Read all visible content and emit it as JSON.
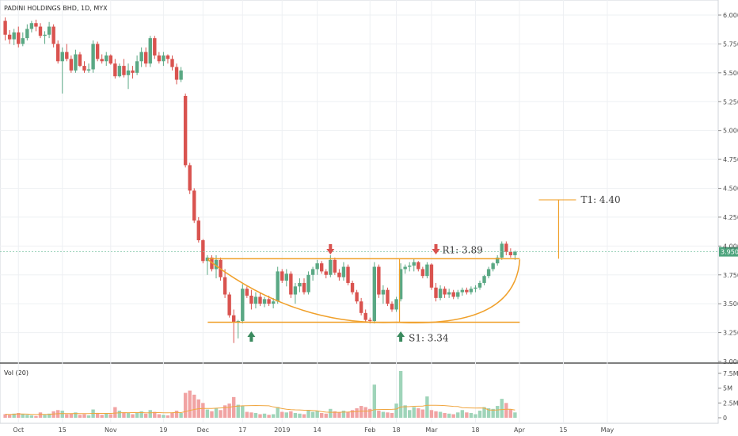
{
  "chart_data": {
    "type": "candlestick",
    "title": "PADINI HOLDINGS BHD, 1D, MYX",
    "volume_label": "Vol (20)",
    "price_axis": {
      "min": 3.0,
      "max": 6.0,
      "ticks": [
        "6.000",
        "5.750",
        "5.500",
        "5.250",
        "5.000",
        "4.750",
        "4.500",
        "4.250",
        "4.000",
        "3.750",
        "3.500",
        "3.250",
        "3.000"
      ]
    },
    "volume_axis": {
      "ticks": [
        "7.5M",
        "5M",
        "2.5M",
        "0"
      ]
    },
    "date_ticks": [
      {
        "i": 3,
        "label": "Oct"
      },
      {
        "i": 13,
        "label": "15"
      },
      {
        "i": 24,
        "label": "Nov"
      },
      {
        "i": 36,
        "label": "19"
      },
      {
        "i": 45,
        "label": "Dec"
      },
      {
        "i": 54,
        "label": "17"
      },
      {
        "i": 63,
        "label": "2019"
      },
      {
        "i": 71,
        "label": "14"
      },
      {
        "i": 83,
        "label": "Feb"
      },
      {
        "i": 89,
        "label": "18"
      },
      {
        "i": 97,
        "label": "Mar"
      },
      {
        "i": 107,
        "label": "18"
      },
      {
        "i": 117,
        "label": "Apr"
      },
      {
        "i": 127,
        "label": "15"
      },
      {
        "i": 137,
        "label": "May"
      }
    ],
    "last_price": "3.950",
    "candles": [
      [
        5.95,
        5.98,
        5.78,
        5.83,
        0.6
      ],
      [
        5.83,
        5.87,
        5.75,
        5.79,
        0.5
      ],
      [
        5.79,
        5.88,
        5.74,
        5.85,
        0.7
      ],
      [
        5.85,
        5.9,
        5.72,
        5.75,
        0.8
      ],
      [
        5.75,
        5.85,
        5.73,
        5.8,
        0.6
      ],
      [
        5.8,
        5.92,
        5.78,
        5.88,
        0.5
      ],
      [
        5.88,
        5.95,
        5.85,
        5.93,
        0.4
      ],
      [
        5.93,
        5.96,
        5.86,
        5.9,
        0.3
      ],
      [
        5.9,
        5.93,
        5.8,
        5.82,
        0.9
      ],
      [
        5.82,
        5.86,
        5.75,
        5.83,
        0.5
      ],
      [
        5.83,
        5.94,
        5.8,
        5.9,
        0.7
      ],
      [
        5.9,
        5.92,
        5.72,
        5.75,
        1.1
      ],
      [
        5.75,
        5.78,
        5.58,
        5.6,
        1.3
      ],
      [
        5.6,
        5.72,
        5.32,
        5.68,
        1.2
      ],
      [
        5.68,
        5.75,
        5.6,
        5.62,
        0.6
      ],
      [
        5.62,
        5.65,
        5.5,
        5.52,
        0.7
      ],
      [
        5.52,
        5.7,
        5.5,
        5.66,
        0.9
      ],
      [
        5.66,
        5.68,
        5.55,
        5.56,
        0.5
      ],
      [
        5.56,
        5.6,
        5.5,
        5.52,
        0.6
      ],
      [
        5.52,
        5.58,
        5.5,
        5.53,
        0.4
      ],
      [
        5.53,
        5.78,
        5.5,
        5.75,
        1.4
      ],
      [
        5.75,
        5.77,
        5.6,
        5.62,
        0.8
      ],
      [
        5.62,
        5.66,
        5.58,
        5.6,
        0.5
      ],
      [
        5.6,
        5.68,
        5.56,
        5.65,
        0.7
      ],
      [
        5.65,
        5.66,
        5.57,
        5.58,
        0.6
      ],
      [
        5.58,
        5.62,
        5.45,
        5.47,
        1.8
      ],
      [
        5.47,
        5.58,
        5.46,
        5.56,
        1.2
      ],
      [
        5.56,
        5.62,
        5.46,
        5.48,
        0.9
      ],
      [
        5.48,
        5.58,
        5.36,
        5.52,
        0.8
      ],
      [
        5.52,
        5.56,
        5.45,
        5.5,
        0.6
      ],
      [
        5.5,
        5.65,
        5.48,
        5.6,
        0.9
      ],
      [
        5.6,
        5.72,
        5.55,
        5.68,
        1.1
      ],
      [
        5.68,
        5.72,
        5.55,
        5.58,
        0.7
      ],
      [
        5.58,
        5.82,
        5.55,
        5.8,
        1.3
      ],
      [
        5.8,
        5.82,
        5.62,
        5.65,
        1.0
      ],
      [
        5.65,
        5.68,
        5.58,
        5.6,
        0.6
      ],
      [
        5.6,
        5.68,
        5.56,
        5.65,
        0.5
      ],
      [
        5.65,
        5.66,
        5.58,
        5.62,
        0.4
      ],
      [
        5.62,
        5.65,
        5.52,
        5.55,
        0.9
      ],
      [
        5.55,
        5.58,
        5.4,
        5.44,
        1.2
      ],
      [
        5.44,
        5.55,
        5.42,
        5.52,
        0.8
      ],
      [
        5.3,
        5.32,
        4.68,
        4.7,
        4.2
      ],
      [
        4.7,
        4.72,
        4.45,
        4.48,
        4.6
      ],
      [
        4.48,
        4.5,
        4.2,
        4.22,
        3.9
      ],
      [
        4.22,
        4.25,
        4.03,
        4.05,
        3.1
      ],
      [
        4.05,
        4.06,
        3.85,
        3.87,
        2.5
      ],
      [
        3.87,
        3.92,
        3.75,
        3.9,
        1.4
      ],
      [
        3.9,
        3.92,
        3.78,
        3.8,
        1.1
      ],
      [
        3.8,
        3.92,
        3.72,
        3.88,
        1.6
      ],
      [
        3.88,
        3.9,
        3.7,
        3.73,
        1.3
      ],
      [
        3.73,
        3.8,
        3.55,
        3.58,
        2.1
      ],
      [
        3.58,
        3.6,
        3.38,
        3.4,
        2.4
      ],
      [
        3.4,
        3.45,
        3.16,
        3.34,
        3.5
      ],
      [
        3.34,
        3.36,
        3.2,
        3.35,
        2.2
      ],
      [
        3.35,
        3.67,
        3.33,
        3.63,
        2.0
      ],
      [
        3.63,
        3.65,
        3.55,
        3.57,
        1.0
      ],
      [
        3.57,
        3.62,
        3.45,
        3.5,
        0.9
      ],
      [
        3.5,
        3.6,
        3.46,
        3.56,
        0.8
      ],
      [
        3.56,
        3.6,
        3.48,
        3.5,
        0.6
      ],
      [
        3.5,
        3.56,
        3.47,
        3.54,
        0.7
      ],
      [
        3.54,
        3.57,
        3.48,
        3.5,
        0.5
      ],
      [
        3.5,
        3.55,
        3.46,
        3.52,
        0.6
      ],
      [
        3.52,
        3.82,
        3.5,
        3.78,
        1.8
      ],
      [
        3.78,
        3.8,
        3.68,
        3.7,
        1.0
      ],
      [
        3.7,
        3.8,
        3.65,
        3.76,
        0.9
      ],
      [
        3.76,
        3.78,
        3.55,
        3.58,
        1.1
      ],
      [
        3.58,
        3.68,
        3.5,
        3.65,
        0.8
      ],
      [
        3.65,
        3.72,
        3.6,
        3.68,
        0.7
      ],
      [
        3.68,
        3.72,
        3.58,
        3.6,
        0.6
      ],
      [
        3.6,
        3.78,
        3.58,
        3.75,
        1.3
      ],
      [
        3.75,
        3.82,
        3.7,
        3.8,
        1.0
      ],
      [
        3.8,
        3.88,
        3.75,
        3.85,
        1.2
      ],
      [
        3.85,
        3.87,
        3.76,
        3.78,
        0.8
      ],
      [
        3.78,
        3.8,
        3.72,
        3.75,
        0.7
      ],
      [
        3.75,
        3.92,
        3.73,
        3.88,
        1.5
      ],
      [
        3.88,
        3.9,
        3.75,
        3.77,
        1.1
      ],
      [
        3.77,
        3.8,
        3.7,
        3.73,
        0.9
      ],
      [
        3.73,
        3.86,
        3.7,
        3.82,
        1.2
      ],
      [
        3.82,
        3.84,
        3.66,
        3.68,
        1.0
      ],
      [
        3.68,
        3.7,
        3.58,
        3.6,
        1.3
      ],
      [
        3.6,
        3.62,
        3.5,
        3.52,
        1.6
      ],
      [
        3.52,
        3.55,
        3.4,
        3.42,
        2.0
      ],
      [
        3.42,
        3.45,
        3.34,
        3.36,
        1.8
      ],
      [
        3.36,
        3.38,
        3.33,
        3.35,
        1.5
      ],
      [
        3.35,
        3.86,
        3.33,
        3.82,
        5.6
      ],
      [
        3.82,
        3.84,
        3.55,
        3.58,
        1.2
      ],
      [
        3.58,
        3.66,
        3.5,
        3.62,
        1.0
      ],
      [
        3.62,
        3.64,
        3.48,
        3.5,
        0.9
      ],
      [
        3.5,
        3.52,
        3.43,
        3.45,
        0.8
      ],
      [
        3.45,
        3.56,
        3.43,
        3.54,
        2.4
      ],
      [
        3.54,
        3.85,
        3.52,
        3.8,
        7.9
      ],
      [
        3.8,
        3.84,
        3.76,
        3.82,
        2.1
      ],
      [
        3.82,
        3.86,
        3.78,
        3.83,
        1.3
      ],
      [
        3.83,
        3.89,
        3.78,
        3.86,
        1.8
      ],
      [
        3.86,
        3.87,
        3.78,
        3.8,
        1.6
      ],
      [
        3.8,
        3.82,
        3.72,
        3.74,
        1.4
      ],
      [
        3.74,
        3.86,
        3.72,
        3.84,
        3.6
      ],
      [
        3.84,
        3.85,
        3.62,
        3.64,
        1.3
      ],
      [
        3.64,
        3.68,
        3.52,
        3.55,
        1.1
      ],
      [
        3.55,
        3.66,
        3.53,
        3.63,
        1.0
      ],
      [
        3.63,
        3.65,
        3.55,
        3.58,
        0.8
      ],
      [
        3.58,
        3.63,
        3.55,
        3.6,
        0.7
      ],
      [
        3.6,
        3.62,
        3.54,
        3.56,
        0.6
      ],
      [
        3.56,
        3.62,
        3.54,
        3.6,
        0.9
      ],
      [
        3.6,
        3.64,
        3.57,
        3.62,
        1.3
      ],
      [
        3.62,
        3.64,
        3.58,
        3.6,
        0.9
      ],
      [
        3.6,
        3.65,
        3.58,
        3.63,
        0.8
      ],
      [
        3.63,
        3.66,
        3.6,
        3.64,
        0.6
      ],
      [
        3.64,
        3.7,
        3.62,
        3.68,
        1.2
      ],
      [
        3.68,
        3.75,
        3.66,
        3.74,
        1.8
      ],
      [
        3.74,
        3.82,
        3.72,
        3.8,
        1.6
      ],
      [
        3.8,
        3.86,
        3.78,
        3.85,
        1.5
      ],
      [
        3.85,
        3.92,
        3.83,
        3.9,
        2.0
      ],
      [
        3.9,
        4.04,
        3.88,
        4.02,
        3.2
      ],
      [
        4.02,
        4.04,
        3.92,
        3.95,
        2.5
      ],
      [
        3.95,
        3.98,
        3.9,
        3.92,
        1.4
      ],
      [
        3.92,
        3.96,
        3.88,
        3.95,
        0.9
      ]
    ],
    "annotations": {
      "resistance_label": "R1: 3.89",
      "support_label": "S1: 3.34",
      "target_label": "T1: 4.40",
      "resistance_level": 3.89,
      "support_level": 3.34,
      "target_level": 4.4
    }
  }
}
